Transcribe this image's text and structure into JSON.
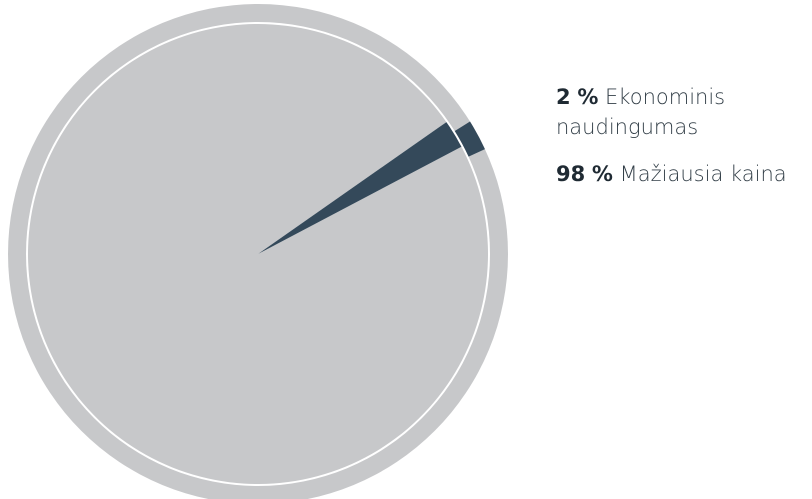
{
  "chart_data": {
    "type": "pie",
    "title": "",
    "slices": [
      {
        "name": "Ekonominis naudingumas",
        "value": 2,
        "value_label": "2",
        "unit": "%",
        "color": "#34495a"
      },
      {
        "name": "Mažiausia kaina",
        "value": 98,
        "value_label": "98",
        "unit": "%",
        "color": "#c7c8ca"
      }
    ],
    "legend_position": "right"
  }
}
